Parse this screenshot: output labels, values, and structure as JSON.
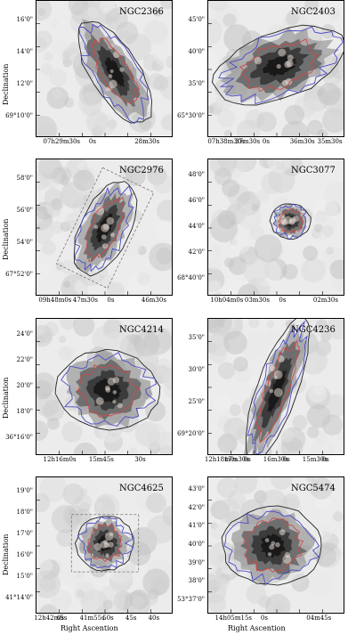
{
  "axis_labels": {
    "y": "Declination",
    "x": "Right Ascention"
  },
  "panels": [
    {
      "name": "NGC2366",
      "yticks": [
        "16'0\"",
        "14'0\"",
        "12'0\"",
        "69°10'0\""
      ],
      "xticks": [
        "07h29m30s",
        "0s",
        "28m30s"
      ]
    },
    {
      "name": "NGC2403",
      "yticks": [
        "45'0\"",
        "40'0\"",
        "35'0\"",
        "65°30'0\""
      ],
      "xticks": [
        "07h38m30s",
        "37m30s",
        "0s",
        "36m30s",
        "35m30s"
      ]
    },
    {
      "name": "NGC2976",
      "yticks": [
        "58'0\"",
        "56'0\"",
        "54'0\"",
        "67°52'0\""
      ],
      "xticks": [
        "09h48m0s",
        "47m30s",
        "0s",
        "46m30s"
      ]
    },
    {
      "name": "NGC3077",
      "yticks": [
        "48'0\"",
        "46'0\"",
        "44'0\"",
        "42'0\"",
        "68°40'0\""
      ],
      "xticks": [
        "10h04m0s",
        "03m30s",
        "0s",
        "02m30s"
      ]
    },
    {
      "name": "NGC4214",
      "yticks": [
        "24'0\"",
        "22'0\"",
        "20'0\"",
        "18'0\"",
        "36°16'0\""
      ],
      "xticks": [
        "12h16m0s",
        "15m45s",
        "30s"
      ]
    },
    {
      "name": "NGC4236",
      "yticks": [
        "35'0\"",
        "30'0\"",
        "25'0\"",
        "69°20'0\""
      ],
      "xticks": [
        "12h18m0s",
        "17m30s",
        "0s",
        "16m30s",
        "0s",
        "15m30s",
        "0s"
      ]
    },
    {
      "name": "NGC4625",
      "yticks": [
        "19'0\"",
        "18'0\"",
        "17'0\"",
        "16'0\"",
        "15'0\"",
        "41°14'0\""
      ],
      "xticks": [
        "12h42m5s",
        "0s",
        "41m55s",
        "50s",
        "45s",
        "40s"
      ]
    },
    {
      "name": "NGC5474",
      "yticks": [
        "43'0\"",
        "42'0\"",
        "41'0\"",
        "40'0\"",
        "39'0\"",
        "38'0\"",
        "53°37'0\""
      ],
      "xticks": [
        "14h05m15s",
        "0s",
        "04m45s"
      ]
    }
  ],
  "colors": {
    "outline": "#222222",
    "contour_blue": "#4a4ac8",
    "contour_red": "#d04848",
    "background": "#ececec"
  }
}
